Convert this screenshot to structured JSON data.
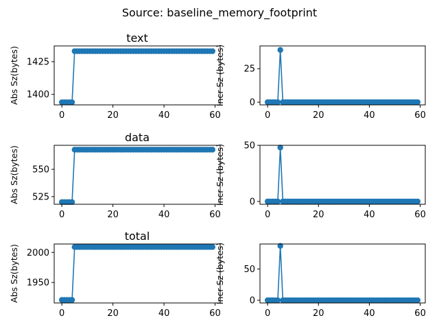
{
  "suptitle": "Source: baseline_memory_footprint",
  "style": {
    "series_color": "#1f77b4"
  },
  "chart_data": [
    {
      "type": "line",
      "title": "text",
      "xlabel": "",
      "ylabel": "Abs Sz(bytes)",
      "xlim": [
        -3,
        62
      ],
      "ylim": [
        1392,
        1437
      ],
      "xticks": [
        0,
        20,
        40,
        60
      ],
      "yticks": [
        1400,
        1425
      ],
      "x_start": 0,
      "x_end": 59,
      "marker": "circle",
      "segments": [
        {
          "from": 0,
          "to": 4,
          "value": 1394
        },
        {
          "from": 5,
          "to": 59,
          "value": 1433
        }
      ]
    },
    {
      "type": "line",
      "title": "",
      "xlabel": "",
      "ylabel": "Incr Sz (bytes)",
      "xlim": [
        -3,
        62
      ],
      "ylim": [
        -2,
        42
      ],
      "xticks": [
        0,
        20,
        40,
        60
      ],
      "yticks": [
        0,
        25
      ],
      "x_start": 0,
      "x_end": 59,
      "marker": "circle",
      "segments": [
        {
          "from": 0,
          "to": 4,
          "value": 0
        },
        {
          "from": 5,
          "to": 5,
          "value": 39
        },
        {
          "from": 6,
          "to": 59,
          "value": 0
        }
      ]
    },
    {
      "type": "line",
      "title": "data",
      "xlabel": "",
      "ylabel": "Abs Sz(bytes)",
      "xlim": [
        -3,
        62
      ],
      "ylim": [
        518,
        572
      ],
      "xticks": [
        0,
        20,
        40,
        60
      ],
      "yticks": [
        525,
        550
      ],
      "x_start": 0,
      "x_end": 59,
      "marker": "circle",
      "segments": [
        {
          "from": 0,
          "to": 4,
          "value": 520
        },
        {
          "from": 5,
          "to": 59,
          "value": 568
        }
      ]
    },
    {
      "type": "line",
      "title": "",
      "xlabel": "",
      "ylabel": "Incr Sz (bytes)",
      "xlim": [
        -3,
        62
      ],
      "ylim": [
        -2.5,
        50
      ],
      "xticks": [
        0,
        20,
        40,
        60
      ],
      "yticks": [
        0,
        50
      ],
      "x_start": 0,
      "x_end": 59,
      "marker": "circle",
      "segments": [
        {
          "from": 0,
          "to": 4,
          "value": 0
        },
        {
          "from": 5,
          "to": 5,
          "value": 48
        },
        {
          "from": 6,
          "to": 59,
          "value": 0
        }
      ]
    },
    {
      "type": "line",
      "title": "total",
      "xlabel": "",
      "ylabel": "Abs Sz(bytes)",
      "xlim": [
        -3,
        62
      ],
      "ylim": [
        1916,
        2014
      ],
      "xticks": [
        0,
        20,
        40,
        60
      ],
      "yticks": [
        1950,
        2000
      ],
      "x_start": 0,
      "x_end": 59,
      "marker": "circle",
      "segments": [
        {
          "from": 0,
          "to": 4,
          "value": 1921
        },
        {
          "from": 5,
          "to": 59,
          "value": 2009
        }
      ]
    },
    {
      "type": "line",
      "title": "",
      "xlabel": "",
      "ylabel": "Incr Sz (bytes)",
      "xlim": [
        -3,
        62
      ],
      "ylim": [
        -4.3,
        90
      ],
      "xticks": [
        0,
        20,
        40,
        60
      ],
      "yticks": [
        0,
        50
      ],
      "x_start": 0,
      "x_end": 59,
      "marker": "circle",
      "segments": [
        {
          "from": 0,
          "to": 4,
          "value": 0
        },
        {
          "from": 5,
          "to": 5,
          "value": 87
        },
        {
          "from": 6,
          "to": 59,
          "value": 0
        }
      ]
    }
  ]
}
